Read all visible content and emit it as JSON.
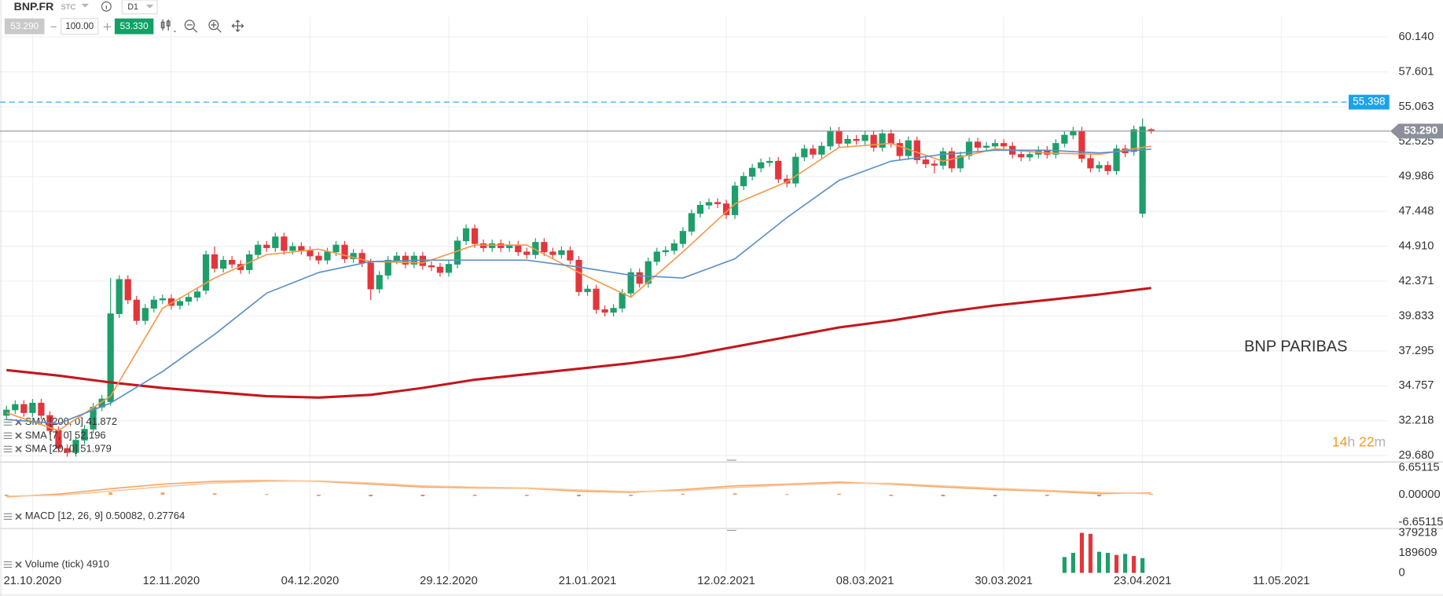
{
  "toolbar": {
    "symbol": "BNP.FR",
    "market": "STC",
    "timeframe": "D1",
    "bid": "53.290",
    "quantity": "100.00",
    "ask": "53.330"
  },
  "chart_data": [
    {
      "type": "candlestick",
      "up_color": "#1e9e6a",
      "down_color": "#e2363c",
      "open": [
        32.6,
        33.0,
        33.4,
        32.8,
        33.5,
        32.6,
        31.5,
        30.2,
        29.9,
        30.8,
        31.6,
        33.2,
        33.6,
        40.0,
        42.5,
        41.0,
        39.5,
        40.4,
        41.0,
        41.1,
        40.6,
        40.9,
        41.2,
        41.7,
        44.3,
        43.3,
        43.9,
        43.6,
        43.2,
        44.3,
        45.0,
        44.8,
        45.6,
        44.6,
        44.9,
        44.6,
        44.2,
        43.9,
        44.5,
        45.0,
        44.0,
        44.4,
        43.7,
        41.8,
        42.8,
        43.9,
        44.2,
        43.6,
        44.2,
        43.5,
        43.4,
        43.0,
        43.6,
        45.3,
        46.2,
        45.1,
        44.8,
        45.1,
        44.8,
        45.0,
        44.5,
        44.3,
        45.2,
        44.5,
        44.3,
        44.6,
        43.9,
        41.6,
        41.8,
        40.3,
        40.1,
        40.4,
        41.5,
        43.0,
        42.2,
        43.8,
        44.5,
        44.6,
        45.1,
        46.0,
        47.3,
        47.9,
        48.1,
        48.0,
        47.2,
        49.3,
        50.0,
        50.6,
        51.0,
        51.1,
        49.8,
        49.5,
        51.4,
        52.0,
        51.6,
        52.2,
        53.3,
        52.4,
        52.7,
        52.6,
        53.0,
        52.1,
        53.1,
        52.4,
        51.5,
        52.6,
        51.2,
        50.9,
        50.8,
        51.8,
        50.6,
        51.5,
        52.5,
        52.1,
        52.2,
        52.4,
        52.2,
        51.6,
        51.4,
        51.6,
        51.9,
        51.6,
        52.4,
        53.0,
        53.3,
        51.3,
        50.6,
        50.8,
        50.4,
        52.0,
        51.8,
        47.3,
        53.4
      ],
      "high": [
        33.3,
        33.7,
        33.7,
        33.8,
        33.8,
        32.9,
        31.8,
        30.5,
        31.1,
        31.9,
        33.5,
        34.1,
        42.6,
        42.8,
        42.8,
        41.3,
        40.7,
        41.3,
        41.4,
        41.4,
        41.2,
        41.5,
        41.9,
        44.6,
        44.9,
        44.2,
        44.2,
        43.9,
        44.6,
        45.3,
        45.3,
        45.9,
        45.9,
        45.2,
        45.2,
        44.9,
        44.5,
        44.8,
        45.3,
        45.3,
        44.7,
        44.7,
        44.0,
        43.1,
        44.2,
        44.5,
        44.5,
        44.5,
        44.5,
        43.8,
        43.7,
        43.9,
        45.6,
        46.5,
        46.5,
        45.4,
        45.4,
        45.4,
        45.3,
        45.3,
        44.8,
        45.5,
        45.5,
        44.8,
        44.9,
        44.9,
        44.2,
        42.1,
        42.1,
        40.6,
        40.7,
        41.8,
        43.3,
        43.3,
        44.1,
        44.8,
        44.9,
        45.4,
        46.3,
        47.6,
        48.2,
        48.4,
        48.4,
        48.3,
        49.6,
        50.3,
        50.9,
        51.3,
        51.4,
        51.4,
        50.1,
        51.7,
        52.3,
        52.3,
        52.5,
        53.6,
        53.6,
        53.0,
        53.0,
        53.3,
        53.3,
        53.4,
        53.4,
        52.7,
        52.9,
        52.9,
        51.5,
        51.2,
        52.1,
        52.1,
        51.8,
        52.8,
        52.8,
        52.5,
        52.7,
        52.7,
        52.5,
        51.9,
        51.9,
        52.2,
        52.2,
        52.7,
        53.3,
        53.6,
        53.6,
        51.6,
        51.1,
        51.1,
        52.3,
        52.3,
        53.7,
        54.2,
        53.5
      ],
      "low": [
        32.3,
        32.7,
        32.5,
        32.5,
        32.3,
        31.2,
        29.9,
        29.6,
        29.6,
        30.5,
        31.3,
        32.9,
        33.3,
        39.7,
        40.7,
        39.2,
        39.2,
        40.1,
        40.7,
        40.3,
        40.3,
        40.6,
        40.9,
        41.4,
        43.0,
        43.0,
        43.3,
        42.9,
        42.9,
        44.0,
        44.5,
        44.5,
        44.3,
        44.3,
        44.3,
        43.9,
        43.6,
        43.6,
        44.2,
        43.7,
        43.7,
        43.4,
        41.0,
        41.5,
        42.5,
        43.6,
        43.3,
        43.3,
        43.2,
        43.1,
        42.7,
        42.7,
        43.3,
        45.0,
        44.8,
        44.5,
        44.5,
        44.5,
        44.5,
        44.2,
        44.0,
        44.0,
        44.2,
        44.0,
        44.0,
        43.6,
        41.3,
        41.3,
        40.0,
        39.8,
        39.8,
        40.1,
        41.2,
        41.9,
        41.9,
        43.5,
        44.2,
        44.3,
        44.8,
        45.7,
        47.0,
        47.6,
        47.7,
        46.9,
        46.9,
        49.0,
        49.7,
        50.3,
        50.7,
        49.5,
        49.2,
        49.2,
        51.1,
        51.3,
        51.3,
        51.9,
        52.1,
        52.1,
        52.3,
        52.3,
        51.8,
        51.8,
        52.1,
        51.2,
        51.2,
        50.9,
        50.6,
        50.2,
        50.5,
        50.3,
        50.3,
        51.2,
        51.8,
        51.8,
        51.9,
        51.9,
        51.3,
        51.1,
        51.1,
        51.3,
        51.3,
        51.3,
        52.1,
        52.7,
        51.0,
        50.3,
        50.3,
        50.1,
        50.1,
        51.4,
        51.5,
        47.0,
        53.1
      ],
      "close": [
        33.0,
        33.4,
        32.8,
        33.5,
        32.6,
        31.5,
        30.2,
        29.9,
        30.8,
        31.6,
        33.2,
        33.8,
        40.0,
        42.5,
        41.0,
        39.5,
        40.4,
        41.0,
        41.1,
        40.6,
        40.9,
        41.2,
        41.6,
        44.3,
        43.3,
        43.9,
        43.6,
        43.2,
        44.3,
        45.0,
        44.8,
        45.6,
        44.6,
        44.9,
        44.6,
        44.2,
        43.9,
        44.5,
        45.0,
        44.0,
        44.4,
        43.7,
        41.8,
        42.8,
        43.9,
        44.2,
        43.6,
        44.2,
        43.5,
        43.4,
        43.0,
        43.6,
        45.3,
        46.2,
        45.1,
        44.8,
        45.1,
        44.8,
        45.0,
        44.5,
        44.3,
        45.2,
        44.5,
        44.3,
        44.6,
        43.9,
        41.6,
        41.8,
        40.3,
        40.1,
        40.4,
        41.5,
        43.0,
        42.2,
        43.8,
        44.5,
        44.6,
        45.1,
        46.0,
        47.3,
        47.9,
        48.1,
        48.0,
        47.2,
        49.3,
        50.0,
        50.6,
        51.0,
        51.1,
        49.8,
        49.5,
        51.4,
        52.0,
        51.6,
        52.2,
        53.3,
        52.4,
        52.7,
        52.6,
        53.0,
        52.1,
        53.1,
        52.4,
        51.5,
        52.6,
        51.2,
        50.9,
        50.8,
        51.8,
        50.6,
        51.5,
        52.5,
        52.1,
        52.2,
        52.4,
        52.2,
        51.6,
        51.4,
        51.6,
        51.9,
        51.6,
        52.4,
        53.0,
        53.3,
        51.3,
        50.6,
        50.8,
        50.4,
        52.0,
        51.7,
        53.4,
        53.6,
        53.29
      ],
      "xlim": [
        -0.75,
        159.25
      ],
      "xticks": [
        {
          "value": 3,
          "label": "21.10.2020"
        },
        {
          "value": 19,
          "label": "12.11.2020"
        },
        {
          "value": 35,
          "label": "04.12.2020"
        },
        {
          "value": 51,
          "label": "29.12.2020"
        },
        {
          "value": 67,
          "label": "21.01.2021"
        },
        {
          "value": 83,
          "label": "12.02.2021"
        },
        {
          "value": 99,
          "label": "08.03.2021"
        },
        {
          "value": 115,
          "label": "30.03.2021"
        },
        {
          "value": 131,
          "label": "23.04.2021"
        },
        {
          "value": 147,
          "label": "11.05.2021"
        }
      ],
      "ylim": [
        29.21,
        61.62
      ],
      "yticks": [
        {
          "value": 60.14,
          "label": "60.140"
        },
        57.601,
        55.063,
        52.525,
        49.986,
        47.448,
        {
          "value": 44.91,
          "label": "44.910"
        },
        42.371,
        39.833,
        37.295,
        34.757,
        32.218,
        {
          "value": 29.68,
          "label": "29.680"
        }
      ],
      "grid": true,
      "series": [
        {
          "name": "SMA [200, 0] 41.872",
          "color": "#c4161c",
          "x": [
            0,
            6,
            12,
            18,
            24,
            30,
            36,
            42,
            48,
            54,
            60,
            66,
            72,
            78,
            84,
            90,
            96,
            102,
            108,
            114,
            120,
            126,
            132
          ],
          "values": [
            35.9,
            35.5,
            35.0,
            34.6,
            34.3,
            34.0,
            33.9,
            34.1,
            34.6,
            35.2,
            35.6,
            36.0,
            36.4,
            36.9,
            37.6,
            38.3,
            39.0,
            39.5,
            40.1,
            40.6,
            41.0,
            41.4,
            41.872
          ]
        },
        {
          "name": "SMA [7, 0] 52.196",
          "color": "#f39a4c",
          "x": [
            0,
            6,
            12,
            18,
            24,
            30,
            36,
            42,
            48,
            54,
            60,
            66,
            72,
            78,
            84,
            90,
            96,
            102,
            108,
            114,
            120,
            126,
            132
          ],
          "values": [
            32.8,
            31.5,
            34.0,
            40.4,
            42.6,
            44.3,
            44.7,
            43.8,
            43.7,
            45.0,
            45.0,
            43.0,
            41.2,
            44.5,
            48.0,
            49.6,
            52.1,
            52.4,
            51.1,
            52.0,
            51.7,
            51.6,
            52.196
          ]
        },
        {
          "name": "SMA [20, 0] 51.979",
          "color": "#5b8fc4",
          "x": [
            0,
            6,
            12,
            18,
            24,
            30,
            36,
            42,
            48,
            54,
            60,
            66,
            72,
            78,
            84,
            90,
            96,
            102,
            108,
            114,
            120,
            126,
            132
          ],
          "values": [
            32.3,
            32.0,
            33.5,
            35.8,
            38.5,
            41.5,
            43.0,
            43.8,
            43.9,
            43.9,
            43.9,
            43.4,
            42.8,
            42.6,
            44.0,
            47.0,
            49.7,
            51.1,
            51.6,
            51.9,
            51.9,
            51.7,
            51.979
          ]
        }
      ],
      "price_lines": [
        {
          "value": 55.398,
          "color": "#1aa3e8",
          "dashed": true
        },
        {
          "value": 53.29,
          "label": "53.290",
          "color": "#8c9099",
          "dashed": false
        }
      ],
      "annotation": "BNP PARIBAS",
      "countdown": [
        "14",
        "h",
        "22",
        "m"
      ]
    },
    {
      "type": "macd",
      "title": "MACD [12, 26, 9] 0.50082, 0.27764",
      "ylim": [
        -8.2,
        8.0
      ],
      "yticks": [
        6.65115,
        {
          "value": 0,
          "label": "0.00000"
        },
        -6.65115
      ],
      "x": [
        0,
        6,
        12,
        18,
        24,
        30,
        36,
        42,
        48,
        54,
        60,
        66,
        72,
        78,
        84,
        90,
        96,
        102,
        108,
        114,
        120,
        126,
        132
      ],
      "histogram": {
        "up_color": "#f7a35c",
        "down_color": "#e8623a",
        "values": [
          -0.2,
          0.3,
          0.6,
          0.6,
          0.4,
          0.2,
          -0.1,
          -0.3,
          -0.3,
          -0.2,
          -0.1,
          -0.3,
          -0.2,
          0.3,
          0.4,
          0.2,
          0.3,
          -0.2,
          -0.3,
          -0.3,
          -0.2,
          -0.3,
          0.22318
        ]
      },
      "series": [
        {
          "color": "#f5a86a",
          "values": [
            -0.5,
            0.2,
            1.5,
            2.6,
            3.3,
            3.5,
            3.3,
            2.6,
            1.9,
            1.7,
            1.6,
            0.9,
            0.6,
            1.3,
            2.2,
            2.6,
            3.1,
            2.6,
            1.9,
            1.3,
            0.9,
            0.3,
            0.50082
          ]
        },
        {
          "color": "#f7c9a0",
          "values": [
            -0.3,
            -0.1,
            0.9,
            2.0,
            2.9,
            3.3,
            3.4,
            2.9,
            2.2,
            1.9,
            1.7,
            1.2,
            0.8,
            1.0,
            1.8,
            2.4,
            2.8,
            2.8,
            2.2,
            1.6,
            1.1,
            0.6,
            0.27764
          ]
        }
      ]
    },
    {
      "type": "volume",
      "title": "Volume (tick) 4910",
      "ylim": [
        0,
        420000
      ],
      "yticks": [
        379218,
        189609,
        0
      ],
      "x": [
        122,
        123,
        124,
        125,
        126,
        127,
        128,
        129,
        130,
        131
      ],
      "values": [
        150000,
        190000,
        379218,
        370000,
        200000,
        190000,
        170000,
        180000,
        160000,
        140000
      ],
      "colors": [
        "#1e9e6a",
        "#1e9e6a",
        "#e2363c",
        "#e2363c",
        "#1e9e6a",
        "#1e9e6a",
        "#e2363c",
        "#1e9e6a",
        "#e2363c",
        "#1e9e6a"
      ]
    }
  ]
}
